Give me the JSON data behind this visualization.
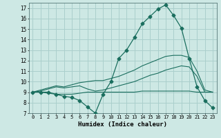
{
  "xlabel": "Humidex (Indice chaleur)",
  "bg_color": "#cde8e4",
  "grid_color": "#aacfcc",
  "line_color": "#1a6e5e",
  "xlim": [
    -0.5,
    23.5
  ],
  "ylim": [
    7,
    17.5
  ],
  "yticks": [
    7,
    8,
    9,
    10,
    11,
    12,
    13,
    14,
    15,
    16,
    17
  ],
  "xticks": [
    0,
    1,
    2,
    3,
    4,
    5,
    6,
    7,
    8,
    9,
    10,
    11,
    12,
    13,
    14,
    15,
    16,
    17,
    18,
    19,
    20,
    21,
    22,
    23
  ],
  "series": [
    {
      "x": [
        0,
        1,
        2,
        3,
        4,
        5,
        6,
        7,
        8,
        9,
        10,
        11,
        12,
        13,
        14,
        15,
        16,
        17,
        18,
        19,
        20,
        21,
        22,
        23
      ],
      "y": [
        9.0,
        9.0,
        9.0,
        8.8,
        8.6,
        8.5,
        8.2,
        7.6,
        7.0,
        8.8,
        10.0,
        12.2,
        13.0,
        14.2,
        15.5,
        16.2,
        16.9,
        17.3,
        16.3,
        15.1,
        12.2,
        9.5,
        8.2,
        7.5
      ],
      "marker": "D",
      "markersize": 2.5
    },
    {
      "x": [
        0,
        1,
        2,
        3,
        4,
        5,
        6,
        7,
        8,
        9,
        10,
        11,
        12,
        13,
        14,
        15,
        16,
        17,
        18,
        19,
        20,
        21,
        22,
        23
      ],
      "y": [
        9.0,
        9.1,
        9.3,
        9.5,
        9.4,
        9.5,
        9.6,
        9.3,
        9.1,
        9.2,
        9.4,
        9.6,
        9.8,
        10.0,
        10.3,
        10.6,
        10.8,
        11.1,
        11.3,
        11.5,
        11.4,
        10.5,
        9.0,
        9.0
      ],
      "marker": null,
      "markersize": 0
    },
    {
      "x": [
        0,
        1,
        2,
        3,
        4,
        5,
        6,
        7,
        8,
        9,
        10,
        11,
        12,
        13,
        14,
        15,
        16,
        17,
        18,
        19,
        20,
        21,
        22,
        23
      ],
      "y": [
        9.0,
        9.2,
        9.4,
        9.6,
        9.5,
        9.7,
        9.9,
        10.0,
        10.1,
        10.1,
        10.3,
        10.5,
        10.8,
        11.1,
        11.5,
        11.8,
        12.1,
        12.4,
        12.5,
        12.5,
        12.3,
        11.0,
        9.2,
        9.0
      ],
      "marker": null,
      "markersize": 0
    },
    {
      "x": [
        0,
        1,
        2,
        3,
        4,
        5,
        6,
        7,
        8,
        9,
        10,
        11,
        12,
        13,
        14,
        15,
        16,
        17,
        18,
        19,
        20,
        21,
        22,
        23
      ],
      "y": [
        9.0,
        9.0,
        8.9,
        8.8,
        8.8,
        8.8,
        8.9,
        9.0,
        9.0,
        9.0,
        9.0,
        9.0,
        9.0,
        9.0,
        9.1,
        9.1,
        9.1,
        9.1,
        9.1,
        9.1,
        9.1,
        9.0,
        9.0,
        9.0
      ],
      "marker": null,
      "markersize": 0
    }
  ]
}
